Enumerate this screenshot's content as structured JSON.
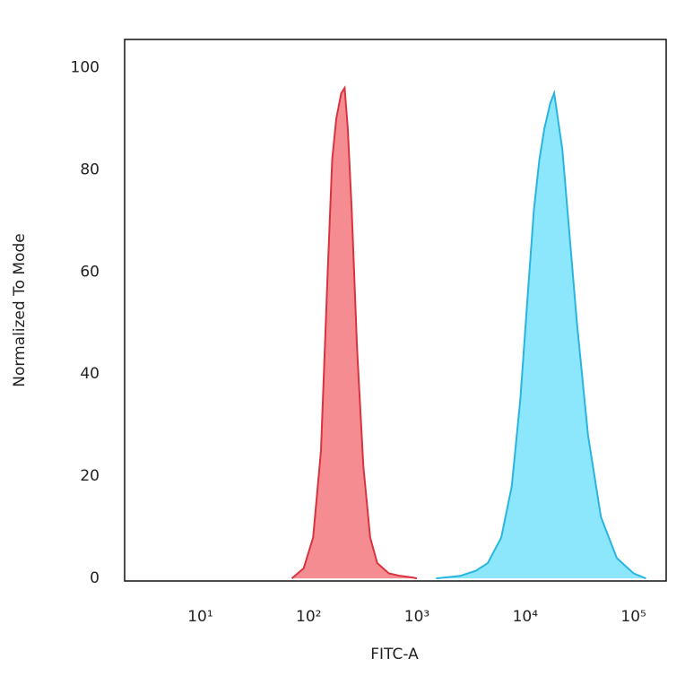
{
  "chart_data": {
    "type": "area",
    "xlabel": "FITC-A",
    "ylabel": "Normalized To Mode",
    "xscale": "log",
    "xlim": [
      2,
      200000
    ],
    "ylim": [
      -0.5,
      105.5
    ],
    "xticks": [
      {
        "value": 10,
        "label": "10¹"
      },
      {
        "value": 100,
        "label": "10²"
      },
      {
        "value": 1000,
        "label": "10³"
      },
      {
        "value": 10000,
        "label": "10⁴"
      },
      {
        "value": 100000,
        "label": "10⁵"
      }
    ],
    "yticks": [
      0,
      20,
      40,
      60,
      80,
      100
    ],
    "grid": false,
    "series": [
      {
        "color": "#f47f86",
        "line_color": "#d8343f",
        "x": [
          70,
          90,
          110,
          130,
          150,
          165,
          180,
          200,
          215,
          230,
          250,
          280,
          320,
          370,
          430,
          550,
          700,
          900,
          1000
        ],
        "values": [
          0,
          2,
          8,
          25,
          60,
          82,
          90,
          95,
          96,
          88,
          72,
          45,
          22,
          8,
          3,
          1,
          0.5,
          0.2,
          0
        ]
      },
      {
        "color": "#80e3fc",
        "line_color": "#2ab5e0",
        "x": [
          1500,
          2500,
          3500,
          4500,
          6000,
          7500,
          9000,
          10500,
          12000,
          13500,
          15000,
          17000,
          18500,
          20000,
          22000,
          25000,
          30000,
          38000,
          50000,
          70000,
          100000,
          130000
        ],
        "values": [
          0,
          0.5,
          1.5,
          3,
          8,
          18,
          35,
          55,
          72,
          82,
          88,
          93,
          95,
          90,
          84,
          70,
          50,
          28,
          12,
          4,
          1,
          0
        ]
      }
    ]
  }
}
